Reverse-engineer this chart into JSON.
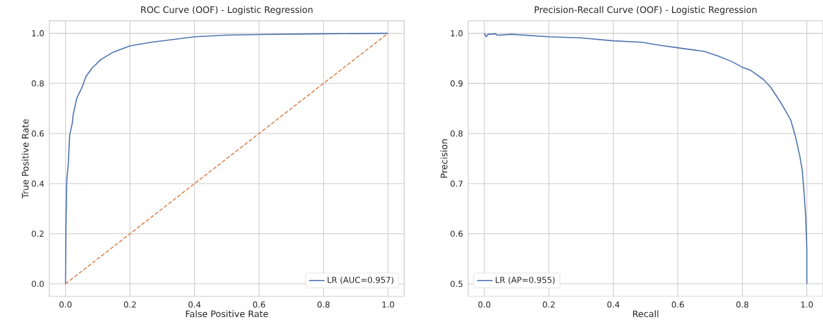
{
  "chart_data": [
    {
      "type": "line",
      "title": "ROC Curve (OOF) - Logistic Regression",
      "xlabel": "False Positive Rate",
      "ylabel": "True Positive Rate",
      "xlim": [
        -0.05,
        1.05
      ],
      "ylim": [
        -0.05,
        1.05
      ],
      "xticks": [
        {
          "value": 0,
          "label": "0.0"
        },
        {
          "value": 0.2,
          "label": "0.2"
        },
        {
          "value": 0.4,
          "label": "0.4"
        },
        {
          "value": 0.6,
          "label": "0.6"
        },
        {
          "value": 0.8,
          "label": "0.8"
        },
        {
          "value": 1,
          "label": "1.0"
        }
      ],
      "yticks": [
        {
          "value": 0,
          "label": "0.0"
        },
        {
          "value": 0.2,
          "label": "0.2"
        },
        {
          "value": 0.4,
          "label": "0.4"
        },
        {
          "value": 0.6,
          "label": "0.6"
        },
        {
          "value": 0.8,
          "label": "0.8"
        },
        {
          "value": 1,
          "label": "1.0"
        }
      ],
      "grid": true,
      "legend": "bottom right",
      "series": [
        {
          "name": "LR (AUC=0.957)",
          "color": "#4c72b0",
          "line_style": "solid",
          "x": [
            0,
            0.0014,
            0.004,
            0.0085,
            0.013,
            0.021,
            0.024,
            0.035,
            0.052,
            0.063,
            0.081,
            0.109,
            0.145,
            0.2,
            0.265,
            0.4,
            0.5,
            0.6,
            0.8,
            1.0
          ],
          "values": [
            0,
            0.232,
            0.414,
            0.477,
            0.595,
            0.641,
            0.677,
            0.741,
            0.786,
            0.827,
            0.859,
            0.895,
            0.923,
            0.95,
            0.964,
            0.986,
            0.993,
            0.995,
            0.998,
            1.0
          ]
        },
        {
          "color": "#dd8452",
          "line_style": "dashed",
          "x": [
            0,
            1
          ],
          "values": [
            0,
            1
          ]
        }
      ]
    },
    {
      "type": "line",
      "title": "Precision-Recall Curve (OOF) - Logistic Regression",
      "xlabel": "Recall",
      "ylabel": "Precision",
      "xlim": [
        -0.05,
        1.05
      ],
      "ylim": [
        0.475,
        1.025
      ],
      "xticks": [
        {
          "value": 0,
          "label": "0.0"
        },
        {
          "value": 0.2,
          "label": "0.2"
        },
        {
          "value": 0.4,
          "label": "0.4"
        },
        {
          "value": 0.6,
          "label": "0.6"
        },
        {
          "value": 0.8,
          "label": "0.8"
        },
        {
          "value": 1,
          "label": "1.0"
        }
      ],
      "yticks": [
        0.5,
        0.6,
        0.7,
        0.8,
        0.9,
        {
          "value": 1,
          "label": "1.0"
        }
      ],
      "grid": true,
      "legend": "bottom left",
      "series": [
        {
          "name": "LR (AP=0.955)",
          "color": "#4c72b0",
          "line_style": "solid",
          "x": [
            0,
            0.006,
            0.011,
            0.035,
            0.039,
            0.085,
            0.2,
            0.298,
            0.4,
            0.489,
            0.546,
            0.601,
            0.681,
            0.723,
            0.766,
            0.801,
            0.826,
            0.865,
            0.887,
            0.915,
            0.936,
            0.95,
            0.965,
            0.979,
            0.986,
            0.991,
            0.996,
            1.0,
            1.0
          ],
          "values": [
            1.0,
            0.993,
            0.998,
            0.999,
            0.996,
            0.998,
            0.993,
            0.991,
            0.985,
            0.982,
            0.976,
            0.971,
            0.964,
            0.955,
            0.944,
            0.932,
            0.926,
            0.908,
            0.893,
            0.866,
            0.843,
            0.827,
            0.793,
            0.752,
            0.725,
            0.684,
            0.639,
            0.57,
            0.5
          ]
        }
      ]
    }
  ]
}
